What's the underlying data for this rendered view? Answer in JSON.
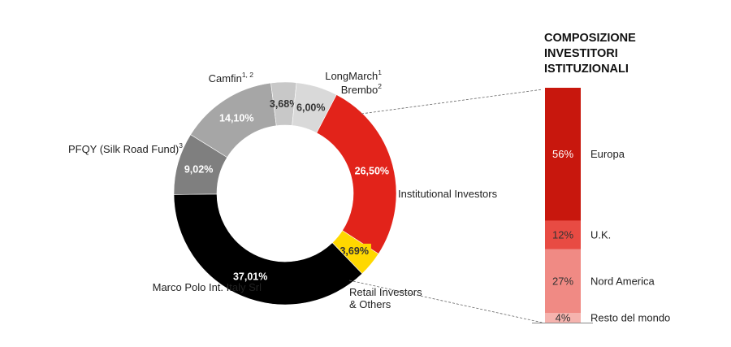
{
  "chart_data": [
    {
      "type": "pie",
      "subtype": "donut",
      "slices": [
        {
          "label": "Institutional Investors",
          "value": 26.5,
          "value_label": "26,50%",
          "color": "#e2231a",
          "value_color": "#ffffff"
        },
        {
          "label": "Retail Investors & Others",
          "label_lines": [
            "Retail Investors",
            "& Others"
          ],
          "value": 3.69,
          "value_label": "3,69%",
          "color": "#ffd800",
          "value_color": "#333333"
        },
        {
          "label": "Marco Polo Int. Italy Srl",
          "value": 37.01,
          "value_label": "37,01%",
          "color": "#000000",
          "value_color": "#ffffff"
        },
        {
          "label": "PFQY (Silk Road Fund)",
          "footnote": "3",
          "value": 9.02,
          "value_label": "9,02%",
          "color": "#7f7f7f",
          "value_color": "#ffffff"
        },
        {
          "label": "Camfin",
          "footnote": "1, 2",
          "value": 14.1,
          "value_label": "14,10%",
          "color": "#a6a6a6",
          "value_color": "#ffffff"
        },
        {
          "label": "LongMarch",
          "footnote": "1",
          "value": 3.68,
          "value_label": "3,68%",
          "color": "#c8c8c8",
          "value_color": "#333333"
        },
        {
          "label": "Brembo",
          "footnote": "2",
          "value": 6.0,
          "value_label": "6,00%",
          "color": "#d9d9d9",
          "value_color": "#333333"
        }
      ]
    },
    {
      "type": "bar",
      "subtype": "stacked-100",
      "title_lines": [
        "COMPOSIZIONE",
        "INVESTITORI",
        "ISTITUZIONALI"
      ],
      "categories": [
        "Europa",
        "U.K.",
        "Nord America",
        "Resto del mondo"
      ],
      "values": [
        56,
        12,
        27,
        4
      ],
      "value_labels": [
        "56%",
        "12%",
        "27%",
        "4%"
      ],
      "colors": [
        "#c8170d",
        "#e84b43",
        "#f08a84",
        "#f5b3ae"
      ],
      "breakdown_of": "Institutional Investors"
    }
  ]
}
